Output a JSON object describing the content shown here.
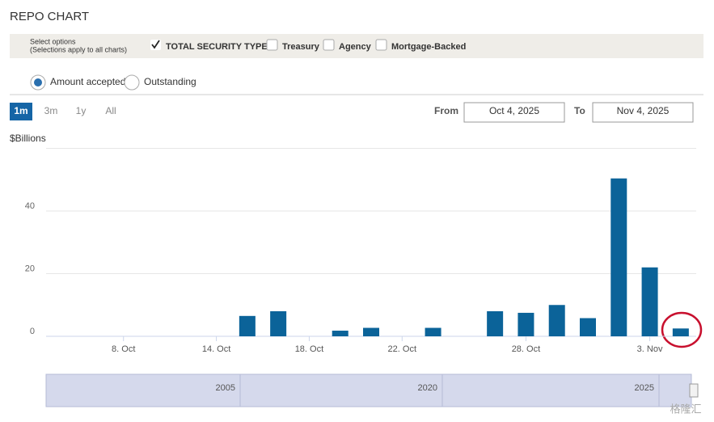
{
  "title": "REPO CHART",
  "options": {
    "label": "Select options",
    "note": "(Selections apply to all charts)",
    "security_types": [
      {
        "label": "TOTAL SECURITY TYPES",
        "checked": true
      },
      {
        "label": "Treasury",
        "checked": false
      },
      {
        "label": "Agency",
        "checked": false
      },
      {
        "label": "Mortgage-Backed",
        "checked": false
      }
    ],
    "measures": [
      {
        "label": "Amount accepted",
        "selected": true
      },
      {
        "label": "Outstanding",
        "selected": false
      }
    ],
    "ranges": [
      {
        "label": "1m",
        "selected": true
      },
      {
        "label": "3m",
        "selected": false
      },
      {
        "label": "1y",
        "selected": false
      },
      {
        "label": "All",
        "selected": false
      }
    ],
    "from_label": "From",
    "from": "Oct 4, 2025",
    "to_label": "To",
    "to": "Nov 4, 2025"
  },
  "chart_data": {
    "type": "bar",
    "y_label": "$Billions",
    "categories": [
      null,
      null,
      "8. Oct",
      null,
      null,
      "14. Oct",
      null,
      null,
      "18. Oct",
      null,
      null,
      "22. Oct",
      null,
      null,
      null,
      "28. Oct",
      null,
      null,
      null,
      "3. Nov",
      null
    ],
    "values": [
      null,
      null,
      null,
      null,
      null,
      null,
      6.5,
      8,
      null,
      1.8,
      2.7,
      null,
      2.7,
      null,
      8,
      7.5,
      10,
      5.8,
      50.4,
      22,
      2.5
    ],
    "color": "#0b6399",
    "ylim": [
      0,
      60
    ],
    "yticks": [
      0,
      20,
      40
    ],
    "grid": true,
    "navigator": {
      "labels": [
        "2005",
        "2020",
        "2025"
      ]
    }
  },
  "watermark": "格隆汇"
}
